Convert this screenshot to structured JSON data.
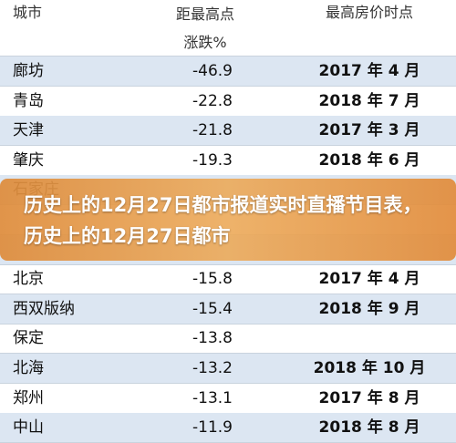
{
  "table": {
    "header": [
      "城市",
      "距最高点涨跌%",
      "最高房价时点"
    ],
    "rows_top": [
      [
        "廊坊",
        "-46.9",
        "2017 年 4 月"
      ],
      [
        "青岛",
        "-22.8",
        "2018 年 7 月"
      ],
      [
        "天津",
        "-21.8",
        "2017 年 3 月"
      ],
      [
        "肇庆",
        "-19.3",
        "2018 年 6 月"
      ],
      [
        "石家庄"
      ]
    ],
    "rows_bottom": [
      [
        "北京",
        "-15.8",
        "2017 年 4 月"
      ],
      [
        "西双版纳",
        "-15.4",
        "2018 年 9 月"
      ],
      [
        "保定",
        "-13.8"
      ],
      [
        "北海",
        "-13.2",
        "2018 年 10 月"
      ],
      [
        "郑州",
        "-13.1",
        "2017 年 8 月"
      ],
      [
        "中山",
        "-11.9",
        "2018 年 8 月"
      ]
    ]
  },
  "banner": {
    "text": "历史上的12月27日都市报道实时直播节目表，历史上的12月27日都市"
  }
}
